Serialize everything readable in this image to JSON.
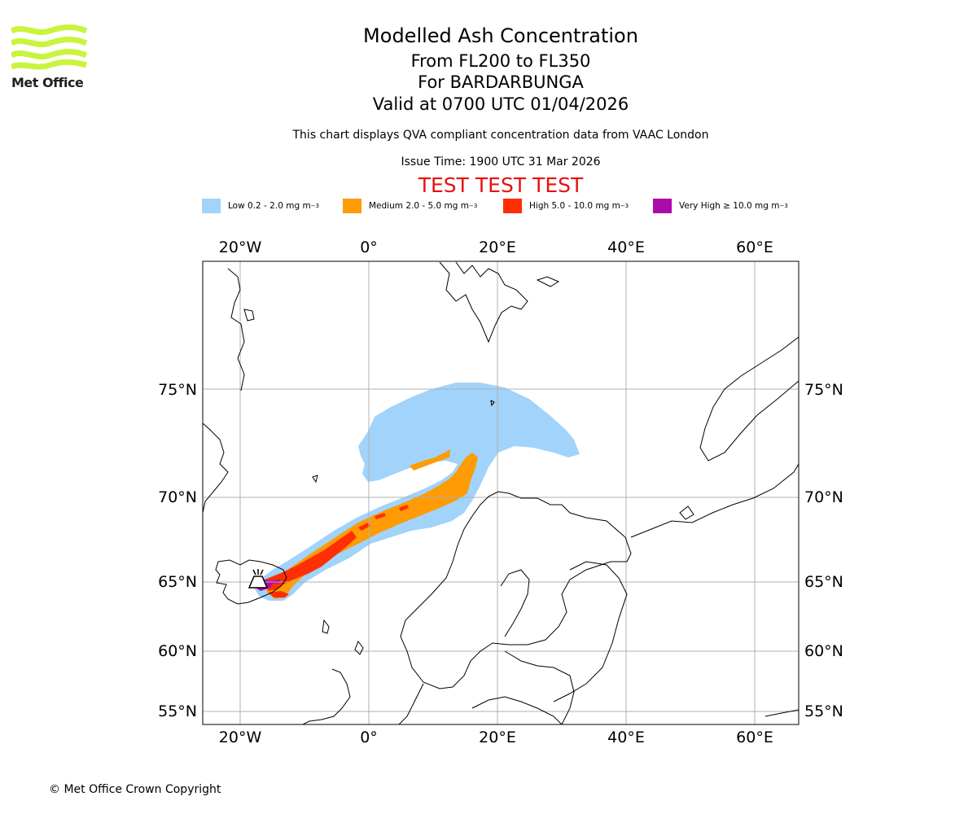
{
  "logo": {
    "text": "Met Office",
    "color": "#c8f53c"
  },
  "titles": {
    "main": "Modelled Ash Concentration",
    "levels": "From FL200 to FL350",
    "volcano": "For BARDARBUNGA",
    "valid": "Valid at 0700 UTC 01/04/2026",
    "description": "This chart displays QVA compliant concentration data from VAAC London",
    "issue": "Issue Time: 1900 UTC 31 Mar 2026",
    "test": "TEST TEST TEST",
    "test_color": "#e8110f"
  },
  "legend": [
    {
      "label": "Low 0.2 - 2.0 mg m",
      "sup": "−3",
      "color": "#a1d3fb"
    },
    {
      "label": "Medium 2.0 - 5.0 mg m",
      "sup": "−3",
      "color": "#fe9b05"
    },
    {
      "label": "High 5.0 - 10.0 mg m",
      "sup": "−3",
      "color": "#fe2e05"
    },
    {
      "label": "Very High ≥ 10.0 mg m",
      "sup": "−3",
      "color": "#ab0bab"
    }
  ],
  "map": {
    "lon_labels": [
      "20°W",
      "0°",
      "20°E",
      "40°E",
      "60°E"
    ],
    "lat_labels": [
      "75°N",
      "70°N",
      "65°N",
      "60°N",
      "55°N"
    ],
    "volcano_icon": "volcano-icon"
  },
  "copyright": "© Met Office Crown Copyright"
}
